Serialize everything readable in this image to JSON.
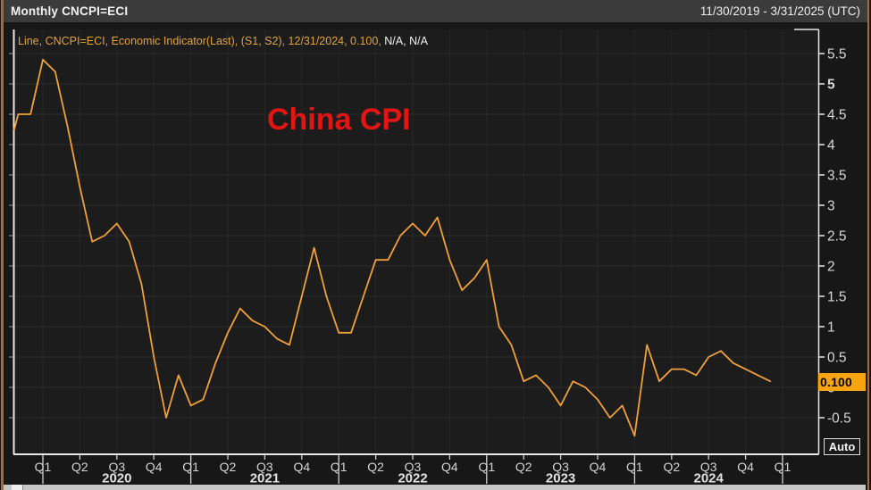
{
  "window": {
    "title": "Monthly CNCPI=ECI",
    "date_range": "11/30/2019 - 3/31/2025 (UTC)"
  },
  "legend": {
    "series_text": "Line, CNCPI=ECI, Economic Indicator(Last), (S1, S2), 12/31/2024, 0.100, ",
    "na_text": "N/A, N/A"
  },
  "annotation": {
    "title": "China CPI",
    "color": "#e21414"
  },
  "last_price": {
    "value": "0.100",
    "box_color": "#f6a50e"
  },
  "auto_button": {
    "label": "Auto"
  },
  "colors": {
    "line": "#f0a03a",
    "legend_orange": "#e2a23c",
    "plot_bg": "#1c1c1c",
    "grid": "#2c2c2c",
    "frame": "#e8e8e8",
    "tick_label": "#d8d8d8",
    "header_bg": "#3b3b3b",
    "side_border": "#a96a2a"
  },
  "chart_data": {
    "type": "line",
    "title": "China CPI",
    "series_name": "CNCPI=ECI  Economic Indicator (Last)",
    "frequency": "monthly",
    "start_month": "2019-11",
    "end_month": "2024-12",
    "values": [
      4.5,
      4.5,
      5.4,
      5.2,
      4.3,
      3.3,
      2.4,
      2.5,
      2.7,
      2.4,
      1.7,
      0.5,
      -0.5,
      0.2,
      -0.3,
      -0.2,
      0.4,
      0.9,
      1.3,
      1.1,
      1.0,
      0.8,
      0.7,
      1.5,
      2.3,
      1.5,
      0.9,
      0.9,
      1.5,
      2.1,
      2.1,
      2.5,
      2.7,
      2.5,
      2.8,
      2.1,
      1.6,
      1.8,
      2.1,
      1.0,
      0.7,
      0.1,
      0.2,
      0.0,
      -0.3,
      0.1,
      0.0,
      -0.2,
      -0.5,
      -0.3,
      -0.8,
      0.7,
      0.1,
      0.3,
      0.3,
      0.2,
      0.5,
      0.6,
      0.4,
      0.3,
      0.2,
      0.1
    ],
    "edge_entry_value": 4.25,
    "last_point": {
      "date": "12/31/2024",
      "value": 0.1
    },
    "y_ticks": [
      "5.5",
      "5",
      "4.5",
      "4",
      "3.5",
      "3",
      "2.5",
      "2",
      "1.5",
      "1",
      "0.5",
      "0",
      "-0.5"
    ],
    "bold_y_tick": "5",
    "x_quarter_labels": [
      "Q1",
      "Q2",
      "Q3",
      "Q4",
      "Q1",
      "Q2",
      "Q3",
      "Q4",
      "Q1",
      "Q2",
      "Q3",
      "Q4",
      "Q1",
      "Q2",
      "Q3",
      "Q4",
      "Q1",
      "Q2",
      "Q3",
      "Q4",
      "Q1"
    ],
    "x_year_labels": [
      "2020",
      "2021",
      "2022",
      "2023",
      "2024"
    ],
    "ylim": [
      -1.1,
      5.9
    ],
    "grid": true,
    "legend_position": "top-left",
    "line_color": "#f0a03a"
  }
}
